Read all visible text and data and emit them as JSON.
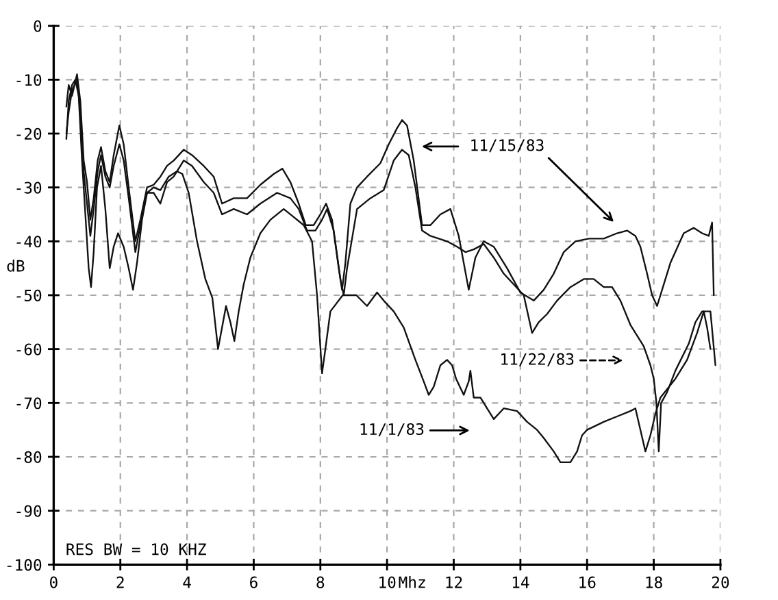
{
  "chart_data": {
    "type": "line",
    "xlabel": "Mhz",
    "ylabel": "dB",
    "xlim": [
      0,
      20
    ],
    "xticks": [
      0,
      2,
      4,
      6,
      8,
      10,
      12,
      14,
      16,
      18,
      20
    ],
    "ylim": [
      -100,
      0
    ],
    "yticks": [
      0,
      -10,
      -20,
      -30,
      -40,
      -50,
      -60,
      -70,
      -80,
      -90,
      -100
    ],
    "grid": true,
    "line_style": "solid",
    "series": [
      {
        "color": "#111111",
        "x": [
          0.38,
          0.45,
          0.55,
          0.7,
          0.8,
          0.9,
          1.0,
          1.1,
          1.2,
          1.32,
          1.42,
          1.55,
          1.68,
          1.8,
          1.97,
          2.1,
          2.25,
          2.45,
          2.6,
          2.8,
          3.0,
          3.2,
          3.4,
          3.6,
          3.9,
          4.15,
          4.5,
          4.8,
          5.05,
          5.4,
          5.8,
          6.2,
          6.6,
          6.86,
          7.1,
          7.35,
          7.56,
          7.8,
          8.0,
          8.17,
          8.35,
          8.55,
          8.65,
          8.75,
          8.9,
          9.1,
          9.4,
          9.8,
          10.05,
          10.3,
          10.45,
          10.6,
          10.8,
          11.05,
          11.3,
          11.6,
          11.9,
          12.15,
          12.45,
          12.65,
          12.9,
          13.2,
          13.6,
          14.0,
          14.4,
          14.7,
          15.0,
          15.3,
          15.65,
          16.06,
          16.5,
          16.9,
          17.2,
          17.45,
          17.6,
          17.8,
          17.95,
          18.1,
          18.25,
          18.5,
          18.9,
          19.2,
          19.45,
          19.65,
          19.75,
          19.8
        ],
        "values": [
          -15,
          -11,
          -13,
          -9,
          -14,
          -25,
          -29,
          -36,
          -32,
          -25,
          -22.5,
          -27,
          -29,
          -24,
          -18.5,
          -22,
          -30,
          -40,
          -36,
          -30,
          -29.5,
          -28,
          -26,
          -25,
          -23,
          -24,
          -26,
          -28,
          -33,
          -32,
          -32,
          -29.5,
          -27.5,
          -26.5,
          -29,
          -33,
          -37,
          -37,
          -35,
          -33,
          -36,
          -45,
          -49,
          -44,
          -33,
          -30,
          -28,
          -25.5,
          -22,
          -19,
          -17.5,
          -18.5,
          -25,
          -37,
          -37,
          -35,
          -34,
          -39,
          -49,
          -43,
          -40,
          -41,
          -45,
          -49.5,
          -51,
          -49,
          -46,
          -42,
          -40,
          -39.5,
          -39.5,
          -38.5,
          -38,
          -39,
          -41,
          -46,
          -50,
          -52,
          -49,
          -44,
          -38.5,
          -37.5,
          -38.5,
          -39,
          -36.5,
          -50
        ]
      },
      {
        "color": "#111111",
        "x": [
          0.38,
          0.45,
          0.55,
          0.7,
          0.8,
          0.9,
          1.0,
          1.1,
          1.2,
          1.32,
          1.42,
          1.55,
          1.68,
          1.8,
          1.97,
          2.1,
          2.25,
          2.45,
          2.6,
          2.8,
          3.0,
          3.2,
          3.4,
          3.6,
          3.9,
          4.15,
          4.5,
          4.8,
          5.05,
          5.4,
          5.8,
          6.2,
          6.7,
          7.1,
          7.35,
          7.6,
          7.85,
          8.05,
          8.2,
          8.4,
          8.6,
          8.7,
          8.8,
          9.1,
          9.5,
          9.9,
          10.2,
          10.45,
          10.65,
          10.85,
          11.05,
          11.3,
          11.8,
          12.1,
          12.35,
          12.6,
          12.9,
          13.2,
          13.5,
          14.1,
          14.35,
          14.55,
          14.8,
          15.1,
          15.5,
          15.9,
          16.2,
          16.5,
          16.75,
          17.0,
          17.3,
          17.7,
          17.9,
          18.0,
          18.08,
          18.15,
          18.22,
          18.4,
          18.65,
          19.05,
          19.25,
          19.45,
          19.7,
          19.85
        ],
        "values": [
          -20,
          -16,
          -12,
          -10,
          -16,
          -27,
          -33,
          -39,
          -34,
          -27,
          -24,
          -28,
          -30,
          -26,
          -22,
          -25,
          -32,
          -42,
          -37,
          -31,
          -31,
          -33,
          -29,
          -28,
          -25,
          -26,
          -29,
          -31,
          -35,
          -34,
          -35,
          -33,
          -31,
          -32,
          -34,
          -38,
          -38,
          -36,
          -34,
          -38,
          -47,
          -50,
          -45,
          -34,
          -32,
          -30.5,
          -25,
          -23,
          -24,
          -30,
          -38,
          -39,
          -40,
          -41,
          -42,
          -41.5,
          -40.5,
          -43,
          -46,
          -50,
          -57,
          -55,
          -53.5,
          -51,
          -48.5,
          -47,
          -47,
          -48.5,
          -48.5,
          -51,
          -55.5,
          -59.5,
          -63,
          -65.5,
          -70,
          -79,
          -70,
          -68,
          -64,
          -59,
          -55,
          -53,
          -53,
          -63
        ]
      },
      {
        "color": "#111111",
        "x": [
          0.38,
          0.45,
          0.55,
          0.65,
          0.75,
          0.85,
          0.95,
          1.05,
          1.12,
          1.2,
          1.3,
          1.42,
          1.55,
          1.68,
          1.8,
          1.93,
          2.1,
          2.25,
          2.38,
          2.5,
          2.65,
          2.8,
          3.0,
          3.2,
          3.45,
          3.7,
          3.86,
          4.05,
          4.3,
          4.55,
          4.76,
          4.93,
          5.05,
          5.17,
          5.3,
          5.42,
          5.55,
          5.7,
          5.9,
          6.2,
          6.5,
          6.9,
          7.2,
          7.5,
          7.75,
          7.9,
          8.05,
          8.15,
          8.3,
          8.67,
          9.08,
          9.4,
          9.7,
          9.9,
          10.2,
          10.5,
          10.85,
          11.1,
          11.25,
          11.4,
          11.6,
          11.8,
          11.95,
          12.07,
          12.3,
          12.45,
          12.5,
          12.6,
          12.8,
          13.0,
          13.2,
          13.5,
          13.9,
          14.2,
          14.5,
          14.7,
          15.0,
          15.2,
          15.5,
          15.7,
          15.85,
          16.0,
          16.5,
          16.9,
          17.3,
          17.45,
          17.6,
          17.75,
          17.9,
          18.05,
          18.2,
          18.65,
          19.0,
          19.3,
          19.5,
          19.6,
          19.7
        ],
        "values": [
          -21,
          -14,
          -11,
          -10,
          -13,
          -25,
          -35,
          -45,
          -48.5,
          -42,
          -30,
          -26,
          -34,
          -45,
          -41,
          -38.5,
          -41,
          -45,
          -49,
          -44,
          -36,
          -31,
          -30,
          -30.5,
          -28,
          -27,
          -27.5,
          -31,
          -40,
          -47,
          -50.5,
          -60,
          -56,
          -52,
          -55,
          -58.5,
          -53,
          -48,
          -43,
          -38.5,
          -36,
          -34,
          -35.5,
          -37,
          -40,
          -50,
          -64.5,
          -60,
          -53,
          -50,
          -50,
          -52,
          -49.5,
          -51,
          -53,
          -56,
          -62,
          -66,
          -68.5,
          -67,
          -63,
          -62,
          -63,
          -65.5,
          -68.5,
          -66,
          -64,
          -69,
          -69,
          -71,
          -73,
          -71,
          -71.5,
          -73.5,
          -75,
          -76.5,
          -79,
          -81,
          -81,
          -79,
          -76,
          -75,
          -73.5,
          -72.5,
          -71.5,
          -71,
          -75,
          -79,
          -76,
          -72,
          -69,
          -65.5,
          -62,
          -57,
          -53,
          -56,
          -60
        ]
      }
    ],
    "annotations": [
      "RES BW = 10 KHZ",
      "11/15/83",
      "11/22/83",
      "11/1/83"
    ]
  }
}
